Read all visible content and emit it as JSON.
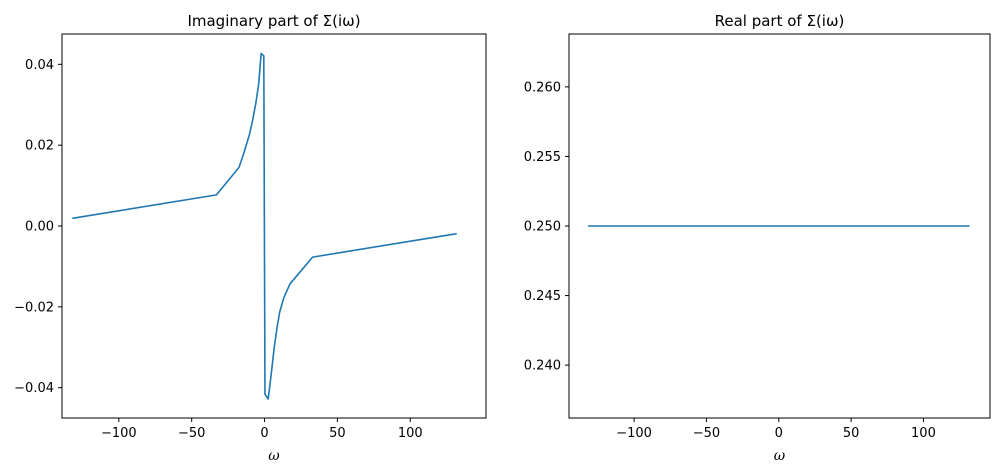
{
  "chart_data": [
    {
      "type": "line",
      "title": "Imaginary part of Σ(iω)",
      "xlabel": "ω",
      "ylabel": "",
      "xlim": [
        -139,
        152
      ],
      "ylim": [
        -0.0475,
        0.0475
      ],
      "xticks": [
        -100,
        -50,
        0,
        50,
        100
      ],
      "yticks": [
        -0.04,
        -0.02,
        0.0,
        0.02,
        0.04
      ],
      "xtick_labels": [
        "−100",
        "−50",
        "0",
        "50",
        "100"
      ],
      "ytick_labels": [
        "−0.04",
        "−0.02",
        "0.00",
        "0.02",
        "0.04"
      ],
      "grid": false,
      "color": "#1f77b4",
      "series": [
        {
          "x": [
            -131.9,
            -33.0,
            -17.5,
            -13.8,
            -10.3,
            -8.1,
            -6.1,
            -4.1,
            -2.3,
            -0.5,
            0.3,
            2.5,
            4.5,
            6.6,
            8.6,
            10.4,
            13.2,
            17.5,
            33.0,
            131.9
          ],
          "y": [
            0.0019,
            0.0077,
            0.0145,
            0.0185,
            0.0227,
            0.0263,
            0.0301,
            0.0349,
            0.0427,
            0.0421,
            -0.0416,
            -0.0428,
            -0.0369,
            -0.0302,
            -0.0251,
            -0.0213,
            -0.0178,
            -0.0143,
            -0.0077,
            -0.0019
          ]
        }
      ]
    },
    {
      "type": "line",
      "title": "Real part of Σ(iω)",
      "xlabel": "ω",
      "ylabel": "",
      "xlim": [
        -145,
        146
      ],
      "ylim": [
        0.2362,
        0.2638
      ],
      "xticks": [
        -100,
        -50,
        0,
        50,
        100
      ],
      "yticks": [
        0.24,
        0.245,
        0.25,
        0.255,
        0.26
      ],
      "xtick_labels": [
        "−100",
        "−50",
        "0",
        "50",
        "100"
      ],
      "ytick_labels": [
        "0.240",
        "0.245",
        "0.250",
        "0.255",
        "0.260"
      ],
      "grid": false,
      "color": "#1f77b4",
      "series": [
        {
          "x": [
            -131.9,
            131.9
          ],
          "y": [
            0.25,
            0.25
          ]
        }
      ]
    }
  ]
}
